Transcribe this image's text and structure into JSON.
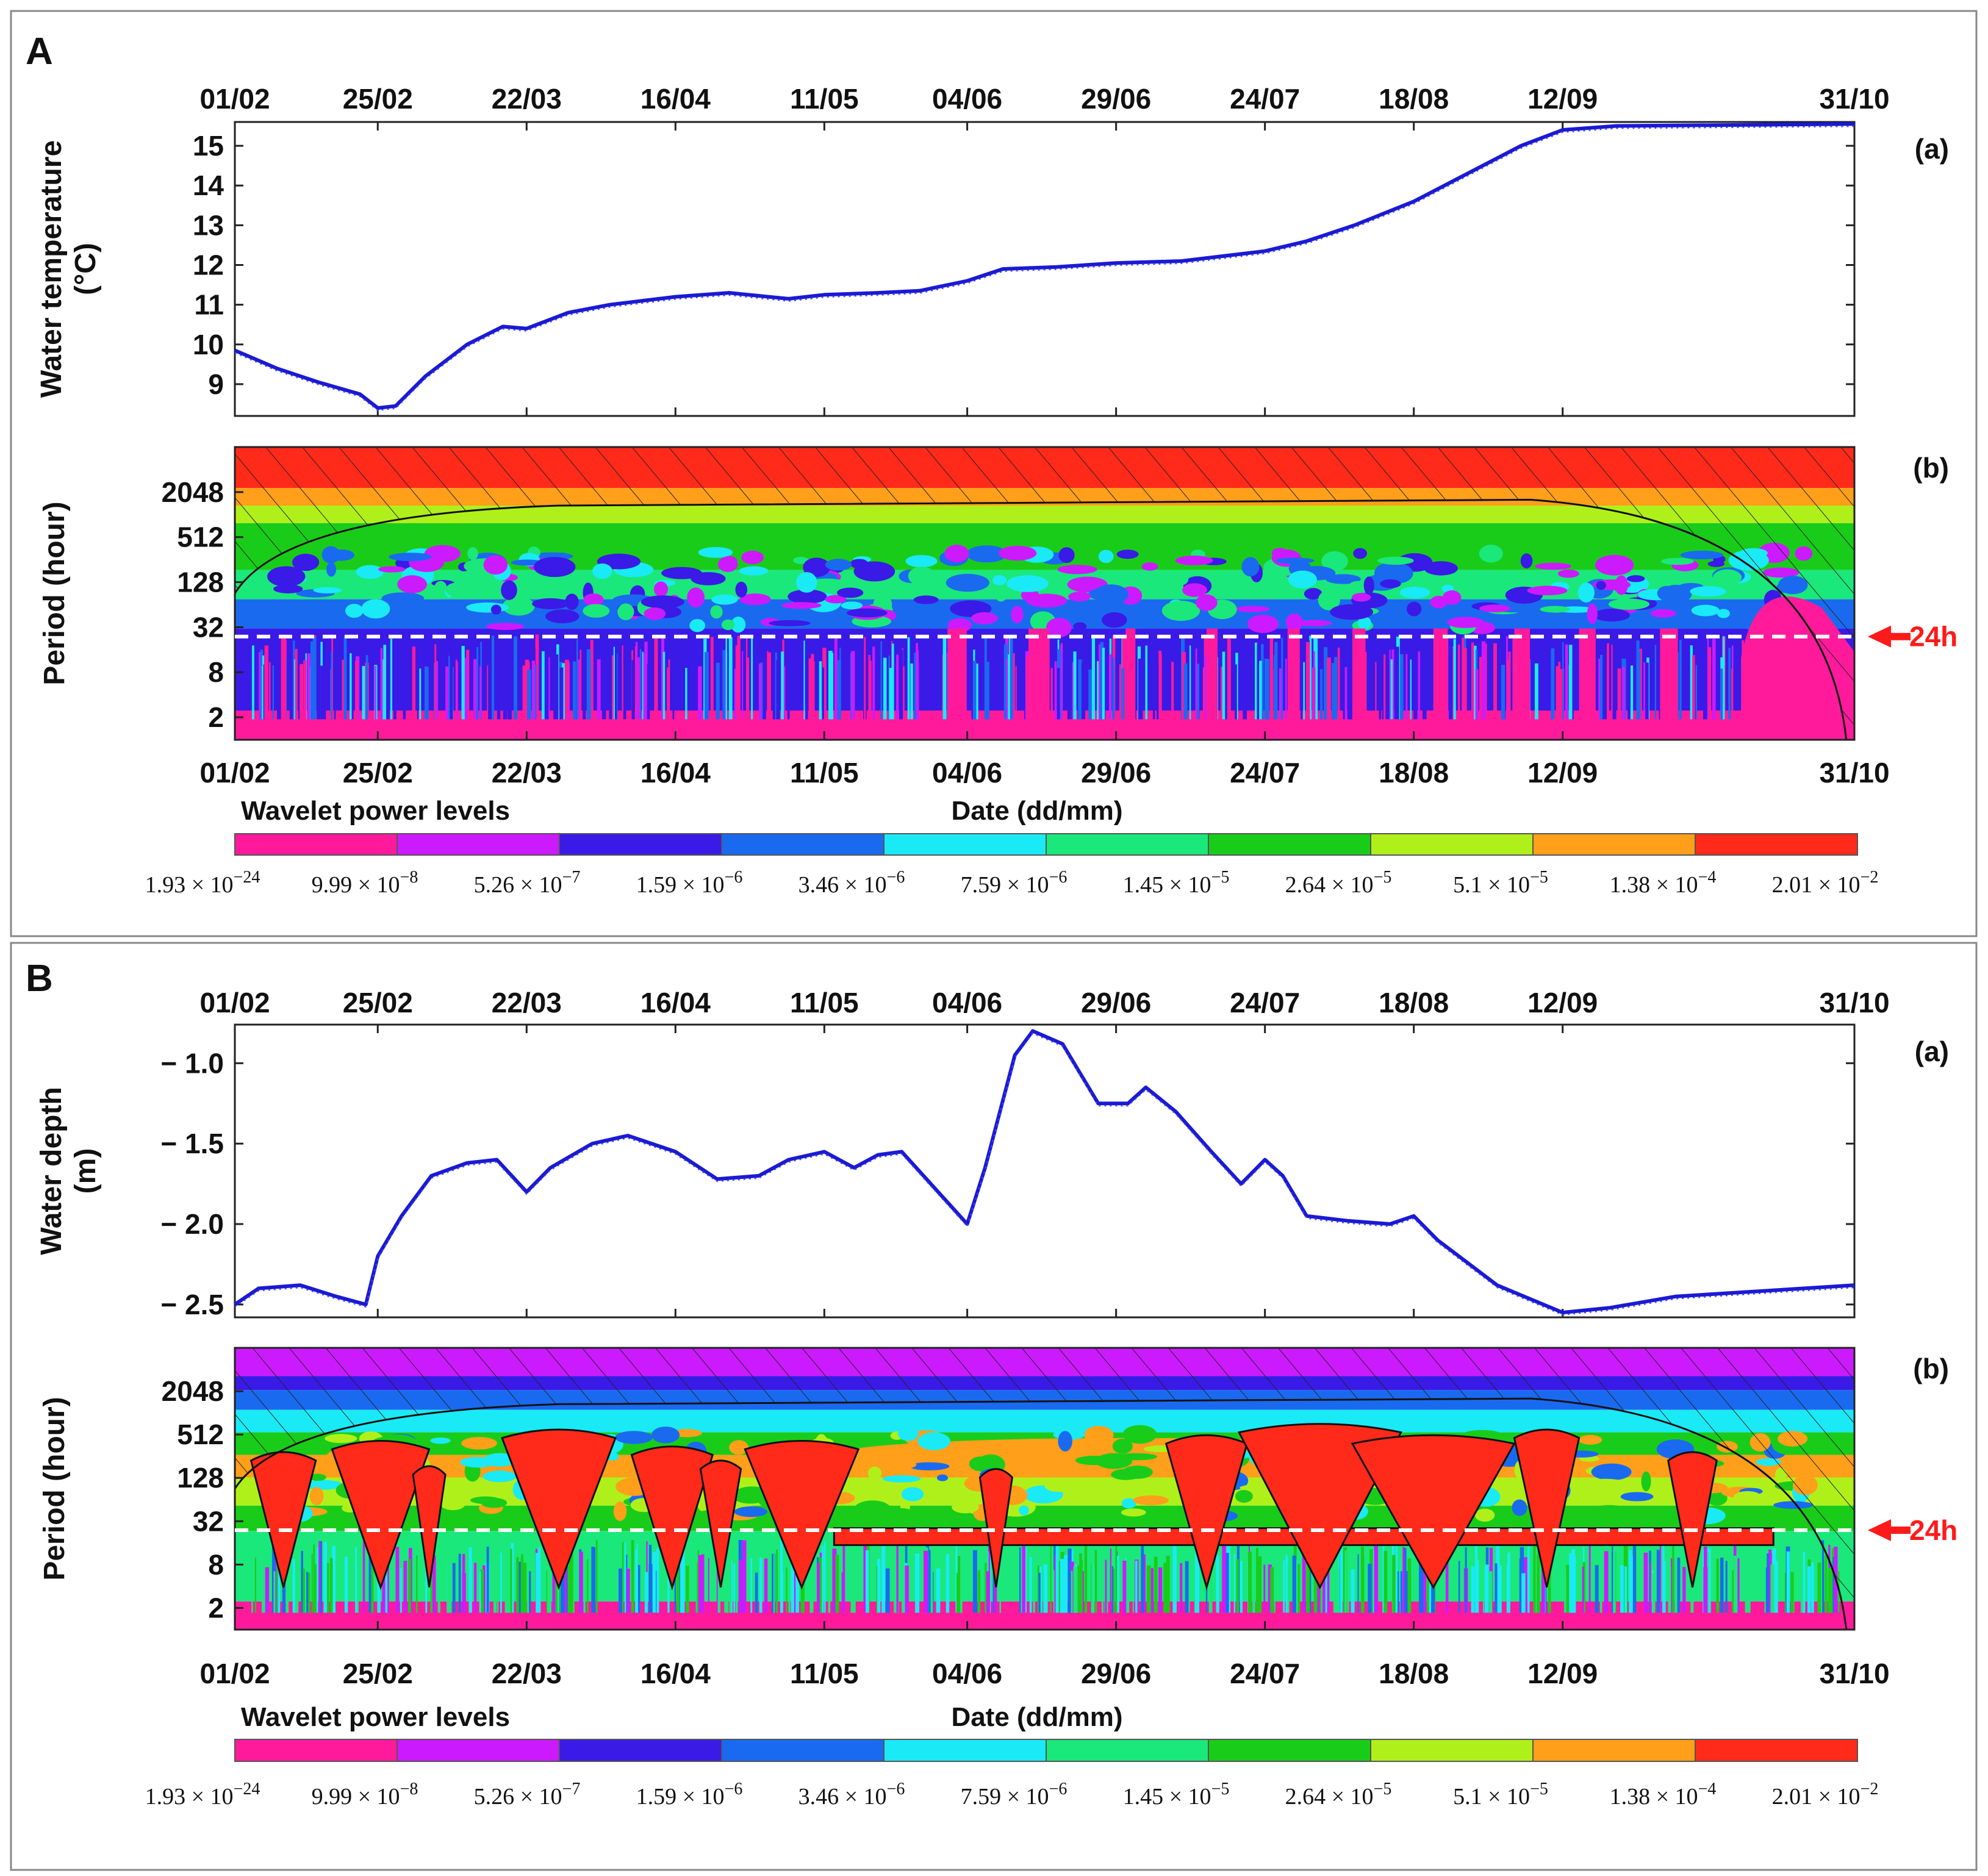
{
  "colors": {
    "frame": "#888888",
    "line": "#1a1ad4",
    "marker": "#ff1a1a",
    "dashed": "#ffffff",
    "scale": [
      "#ff1a9c",
      "#cc1aff",
      "#3a1ae6",
      "#1a6af0",
      "#1aeaf5",
      "#1ae87a",
      "#1acc1a",
      "#b0f01a",
      "#ff9f1a",
      "#ff2a1a"
    ]
  },
  "panels": [
    {
      "letter": "A",
      "series_label": "(a)",
      "wavelet_label": "(b)",
      "dates": [
        "01/02",
        "25/02",
        "22/03",
        "16/04",
        "11/05",
        "04/06",
        "29/06",
        "24/07",
        "18/08",
        "12/09",
        "31/10"
      ],
      "y_title": [
        "Water temperature",
        "(°C)"
      ],
      "period_title": "Period (hour)",
      "period_ticks": [
        "2048",
        "512",
        "128",
        "32",
        "8",
        "2"
      ],
      "marker": "24h",
      "xlabel": "Date (dd/mm)",
      "legend_title": "Wavelet power levels",
      "scale_mantissa": [
        "1.93",
        "9.99",
        "5.26",
        "1.59",
        "3.46",
        "7.59",
        "1.45",
        "2.64",
        "5.1",
        "1.38",
        "2.01"
      ],
      "scale_exponent": [
        "−24",
        "−8",
        "−7",
        "−6",
        "−6",
        "−6",
        "−5",
        "−5",
        "−5",
        "−4",
        "−2"
      ],
      "wavelet_type": "temperature"
    },
    {
      "letter": "B",
      "series_label": "(a)",
      "wavelet_label": "(b)",
      "dates": [
        "01/02",
        "25/02",
        "22/03",
        "16/04",
        "11/05",
        "04/06",
        "29/06",
        "24/07",
        "18/08",
        "12/09",
        "31/10"
      ],
      "y_title": [
        "Water depth",
        "(m)"
      ],
      "period_title": "Period (hour)",
      "period_ticks": [
        "2048",
        "512",
        "128",
        "32",
        "8",
        "2"
      ],
      "marker": "24h",
      "xlabel": "Date (dd/mm)",
      "legend_title": "Wavelet power levels",
      "scale_mantissa": [
        "1.93",
        "9.99",
        "5.26",
        "1.59",
        "3.46",
        "7.59",
        "1.45",
        "2.64",
        "5.1",
        "1.38",
        "2.01"
      ],
      "scale_exponent": [
        "−24",
        "−8",
        "−7",
        "−6",
        "−6",
        "−6",
        "−5",
        "−5",
        "−5",
        "−4",
        "−2"
      ],
      "wavelet_type": "depth"
    }
  ],
  "chart_data": [
    {
      "type": "line",
      "panel": "A(a)",
      "xlabel": "Date (dd/mm)",
      "ylabel": "Water temperature (°C)",
      "x_ticks": [
        "01/02",
        "25/02",
        "22/03",
        "16/04",
        "11/05",
        "04/06",
        "29/06",
        "24/07",
        "18/08",
        "12/09",
        "31/10"
      ],
      "y_ticks": [
        15,
        14,
        13,
        12,
        11,
        10,
        9
      ],
      "ylim": [
        8.2,
        15.6
      ],
      "x": [
        "01/02",
        "08/02",
        "15/02",
        "22/02",
        "25/02",
        "28/02",
        "05/03",
        "12/03",
        "18/03",
        "22/03",
        "29/03",
        "05/04",
        "16/04",
        "25/04",
        "05/05",
        "11/05",
        "20/05",
        "27/05",
        "04/06",
        "10/06",
        "19/06",
        "29/06",
        "10/07",
        "24/07",
        "31/07",
        "08/08",
        "18/08",
        "27/08",
        "05/09",
        "12/09",
        "21/09",
        "31/10"
      ],
      "y": [
        9.85,
        9.4,
        9.05,
        8.75,
        8.4,
        8.45,
        9.2,
        10.0,
        10.45,
        10.4,
        10.8,
        11.0,
        11.2,
        11.3,
        11.15,
        11.25,
        11.3,
        11.35,
        11.6,
        11.9,
        11.95,
        12.05,
        12.1,
        12.35,
        12.6,
        13.0,
        13.6,
        14.3,
        15.0,
        15.4,
        15.5,
        15.55
      ]
    },
    {
      "type": "heatmap",
      "panel": "A(b)",
      "title": "Wavelet power levels",
      "xlabel": "Date (dd/mm)",
      "ylabel": "Period (hour)",
      "x_ticks": [
        "01/02",
        "25/02",
        "22/03",
        "16/04",
        "11/05",
        "04/06",
        "29/06",
        "24/07",
        "18/08",
        "12/09",
        "31/10"
      ],
      "y_ticks": [
        2048,
        512,
        128,
        32,
        8,
        2
      ],
      "y_scale": "log2",
      "ylim": [
        1,
        8192
      ],
      "reference_period_hours": 24,
      "power_levels": [
        "1.93 × 10^−24",
        "9.99 × 10^−8",
        "5.26 × 10^−7",
        "1.59 × 10^−6",
        "3.46 × 10^−6",
        "7.59 × 10^−6",
        "1.45 × 10^−5",
        "2.64 × 10^−5",
        "5.1 × 10^−5",
        "1.38 × 10^−4",
        "2.01 × 10^−2"
      ]
    },
    {
      "type": "line",
      "panel": "B(a)",
      "xlabel": "Date (dd/mm)",
      "ylabel": "Water depth (m)",
      "x_ticks": [
        "01/02",
        "25/02",
        "22/03",
        "16/04",
        "11/05",
        "04/06",
        "29/06",
        "24/07",
        "18/08",
        "12/09",
        "31/10"
      ],
      "y_ticks": [
        -1.0,
        -1.5,
        -2.0,
        -2.5
      ],
      "ylim": [
        -2.58,
        -0.76
      ],
      "x": [
        "01/02",
        "05/02",
        "12/02",
        "18/02",
        "23/02",
        "25/02",
        "01/03",
        "06/03",
        "12/03",
        "17/03",
        "22/03",
        "26/03",
        "02/04",
        "08/04",
        "16/04",
        "23/04",
        "30/04",
        "05/05",
        "11/05",
        "16/05",
        "20/05",
        "24/05",
        "04/06",
        "07/06",
        "12/06",
        "15/06",
        "20/06",
        "26/06",
        "01/07",
        "04/07",
        "09/07",
        "15/07",
        "20/07",
        "24/07",
        "27/07",
        "31/07",
        "07/08",
        "14/08",
        "18/08",
        "22/08",
        "01/09",
        "12/09",
        "20/09",
        "01/10",
        "31/10"
      ],
      "y": [
        -2.5,
        -2.4,
        -2.38,
        -2.45,
        -2.5,
        -2.2,
        -1.95,
        -1.7,
        -1.62,
        -1.6,
        -1.8,
        -1.65,
        -1.5,
        -1.45,
        -1.55,
        -1.72,
        -1.7,
        -1.6,
        -1.55,
        -1.65,
        -1.57,
        -1.55,
        -2.0,
        -1.65,
        -0.95,
        -0.8,
        -0.88,
        -1.25,
        -1.25,
        -1.15,
        -1.3,
        -1.55,
        -1.75,
        -1.6,
        -1.7,
        -1.95,
        -1.98,
        -2.0,
        -1.95,
        -2.1,
        -2.38,
        -2.55,
        -2.52,
        -2.45,
        -2.38
      ]
    },
    {
      "type": "heatmap",
      "panel": "B(b)",
      "title": "Wavelet power levels",
      "xlabel": "Date (dd/mm)",
      "ylabel": "Period (hour)",
      "x_ticks": [
        "01/02",
        "25/02",
        "22/03",
        "16/04",
        "11/05",
        "04/06",
        "29/06",
        "24/07",
        "18/08",
        "12/09",
        "31/10"
      ],
      "y_ticks": [
        2048,
        512,
        128,
        32,
        8,
        2
      ],
      "y_scale": "log2",
      "ylim": [
        1,
        8192
      ],
      "reference_period_hours": 24,
      "power_levels": [
        "1.93 × 10^−24",
        "9.99 × 10^−8",
        "5.26 × 10^−7",
        "1.59 × 10^−6",
        "3.46 × 10^−6",
        "7.59 × 10^−6",
        "1.45 × 10^−5",
        "2.64 × 10^−5",
        "5.1 × 10^−5",
        "1.38 × 10^−4",
        "2.01 × 10^−2"
      ]
    }
  ]
}
